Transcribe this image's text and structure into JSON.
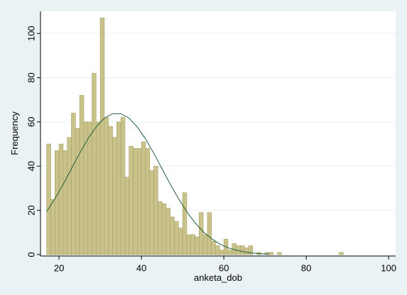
{
  "chart_data": {
    "type": "histogram",
    "x_label": "anketa_dob",
    "y_label": "Frequency",
    "bins": [
      17,
      18,
      19,
      20,
      21,
      22,
      23,
      24,
      25,
      26,
      27,
      28,
      29,
      30,
      31,
      32,
      33,
      34,
      35,
      36,
      37,
      38,
      39,
      40,
      41,
      42,
      43,
      44,
      45,
      46,
      47,
      48,
      49,
      50,
      51,
      52,
      53,
      54,
      55,
      56,
      57,
      58,
      59,
      60,
      61,
      62,
      63,
      64,
      65,
      66,
      67,
      68,
      69,
      70,
      71,
      72,
      73,
      74,
      75,
      76,
      77,
      78,
      79,
      80,
      81,
      82,
      83,
      84,
      85,
      86,
      87,
      88,
      89
    ],
    "values": [
      50,
      25,
      47,
      50,
      47,
      53,
      64,
      57,
      72,
      60,
      60,
      82,
      60,
      107,
      62,
      58,
      53,
      60,
      62,
      35,
      49,
      48,
      48,
      51,
      48,
      38,
      40,
      24,
      23,
      21,
      17,
      15,
      12,
      28,
      9,
      9,
      8,
      19,
      9,
      19,
      6,
      4,
      2,
      7,
      2,
      5,
      4,
      4,
      3,
      4,
      0,
      1,
      0,
      1,
      1,
      0,
      1,
      0,
      0,
      0,
      0,
      0,
      0,
      0,
      0,
      0,
      0,
      0,
      0,
      0,
      0,
      1
    ],
    "color": "#c9c28b",
    "curve": {
      "color": "#1f5f3a",
      "x": [
        17,
        19,
        21,
        23,
        25,
        27,
        29,
        31,
        33,
        35,
        37,
        39,
        41,
        43,
        45,
        47,
        49,
        51,
        53,
        55,
        57,
        59,
        61,
        63,
        65,
        67,
        69,
        71
      ],
      "values": [
        19.4,
        25.3,
        31.8,
        38.8,
        45.8,
        52.3,
        57.7,
        61.7,
        63.7,
        63.7,
        61.7,
        57.7,
        52.3,
        45.8,
        38.8,
        31.8,
        25.3,
        19.4,
        14.4,
        10.3,
        7.2,
        4.8,
        3.1,
        2.0,
        1.2,
        0.7,
        0.4,
        0.2
      ]
    },
    "xlim": [
      15.5,
      101.7
    ],
    "ylim": [
      0,
      110
    ],
    "xticks": [
      20,
      40,
      60,
      80,
      100
    ],
    "yticks": [
      0,
      20,
      40,
      60,
      80,
      100
    ],
    "grid": true
  }
}
